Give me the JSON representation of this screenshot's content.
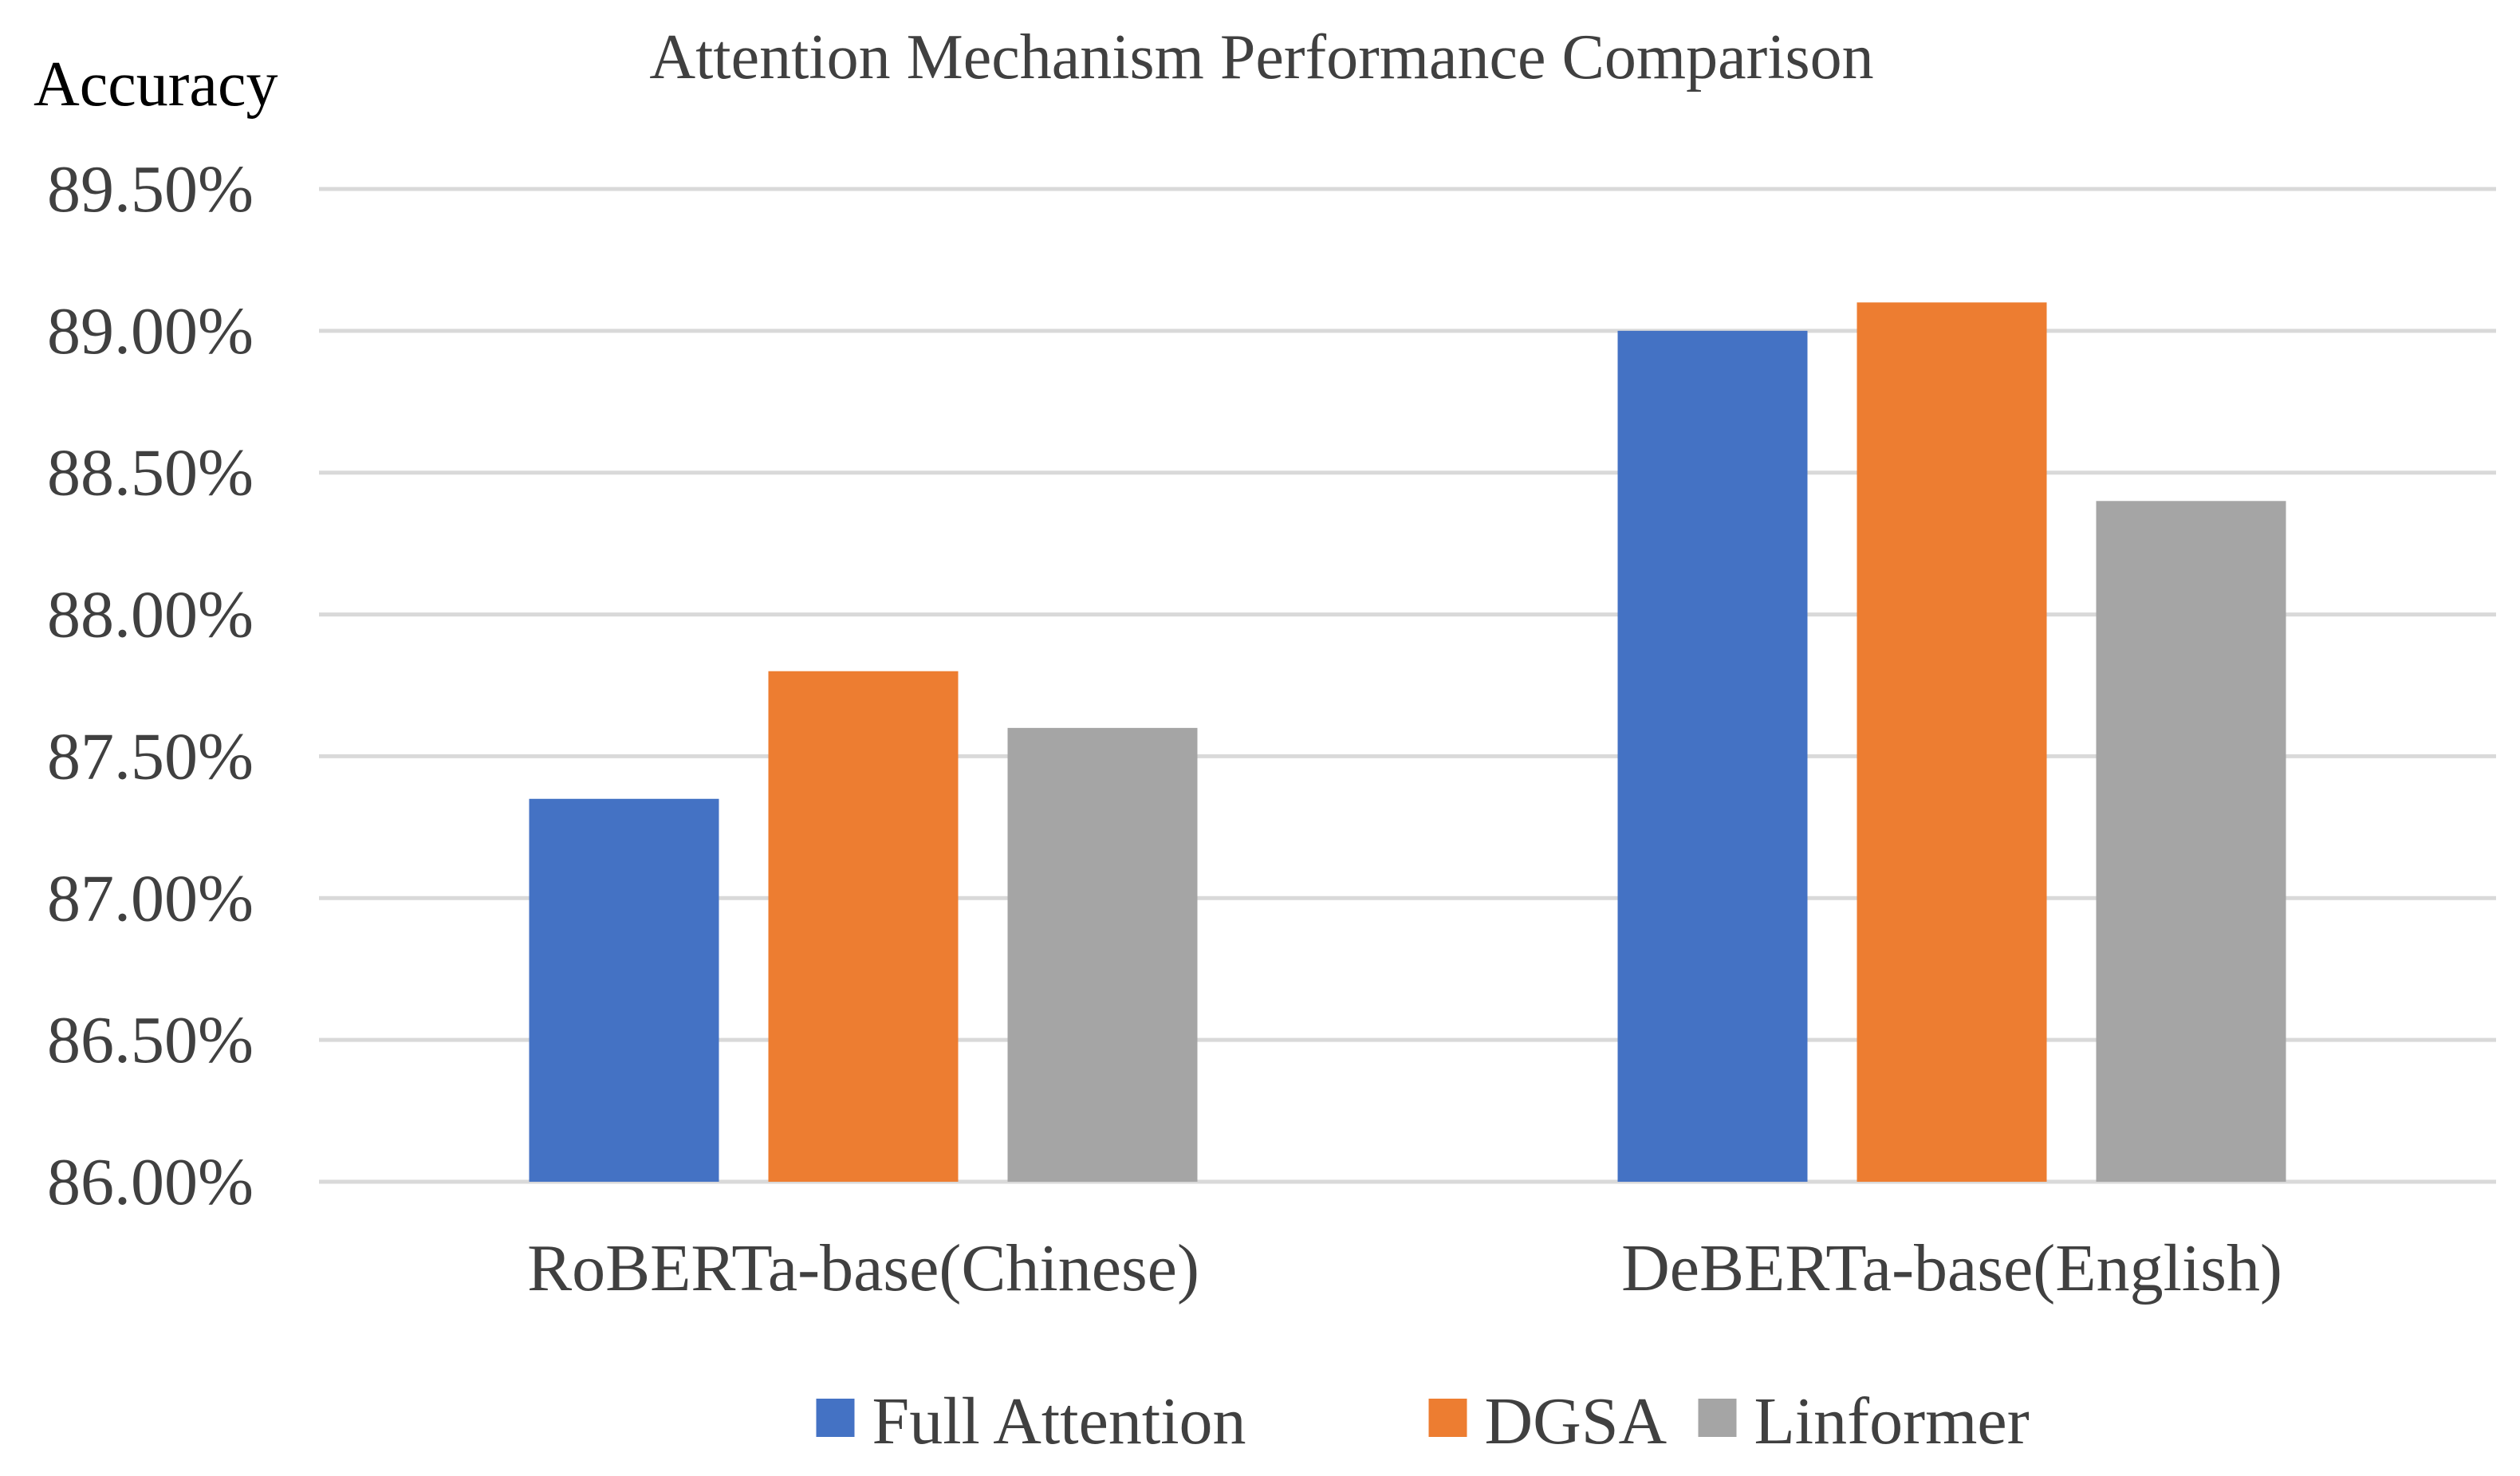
{
  "chart_data": {
    "type": "bar",
    "title": "Attention Mechanism Performance Comparison",
    "xlabel": "",
    "ylabel": "Accuracy",
    "ylim": [
      86.0,
      89.5
    ],
    "yticks": [
      86.0,
      86.5,
      87.0,
      87.5,
      88.0,
      88.5,
      89.0,
      89.5
    ],
    "ytick_labels": [
      "86.00%",
      "86.50%",
      "87.00%",
      "87.50%",
      "88.00%",
      "88.50%",
      "89.00%",
      "89.50%"
    ],
    "grid": true,
    "legend_position": "bottom",
    "categories": [
      "RoBERTa-base(Chinese)",
      "DeBERTa-base(English)"
    ],
    "series": [
      {
        "name": "Full Attention",
        "color": "#4472c4",
        "values": [
          87.35,
          89.0
        ]
      },
      {
        "name": "DGSA",
        "color": "#ed7d31",
        "values": [
          87.8,
          89.1
        ]
      },
      {
        "name": "Linformer",
        "color": "#a5a5a5",
        "values": [
          87.6,
          88.4
        ]
      }
    ]
  }
}
